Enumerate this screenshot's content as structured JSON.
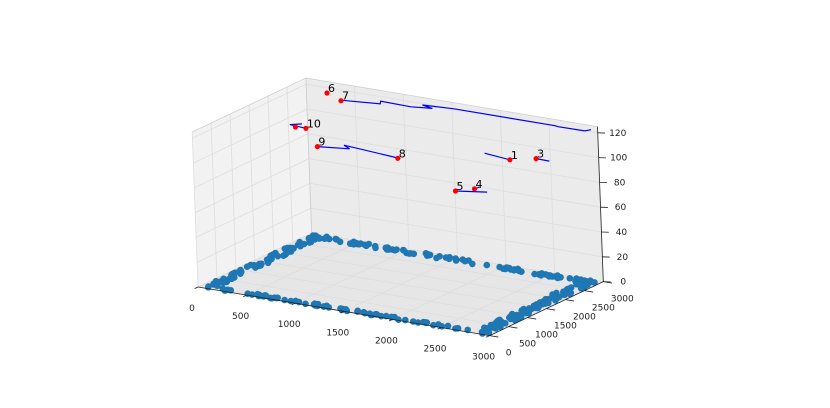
{
  "chart_data": {
    "type": "scatter",
    "projection": "3d",
    "title": "",
    "xlabel": "",
    "ylabel": "",
    "zlabel": "",
    "xlim": [
      0,
      3000
    ],
    "ylim": [
      0,
      3000
    ],
    "zlim": [
      0,
      125
    ],
    "x_ticks": [
      "0",
      "500",
      "1000",
      "1500",
      "2000",
      "2500",
      "3000"
    ],
    "y_ticks": [
      "0",
      "500",
      "1000",
      "1500",
      "2000",
      "2500",
      "3000"
    ],
    "z_ticks": [
      "0",
      "20",
      "40",
      "60",
      "80",
      "100",
      "120"
    ],
    "grid": true,
    "colors": {
      "ground_points": "#1f77b4",
      "labeled_points": "#ff0000",
      "tracks": "#0000ff",
      "pane_x": "#f2f2f2",
      "pane_y": "#ebebeb",
      "pane_z": "#e6e6e6",
      "grid": "#dddddd"
    },
    "ground_ring": {
      "inner": {
        "x": [
          150,
          2820
        ],
        "y": [
          120,
          2820
        ]
      },
      "outer": {
        "x": [
          40,
          2950
        ],
        "y": [
          30,
          2950
        ]
      },
      "count": 340,
      "z": 0
    },
    "labeled_points": [
      {
        "label": "1",
        "x": 2360,
        "y": 2300,
        "z": 100
      },
      {
        "label": "3",
        "x": 2540,
        "y": 2530,
        "z": 100
      },
      {
        "label": "4",
        "x": 2150,
        "y": 1880,
        "z": 80
      },
      {
        "label": "5",
        "x": 2040,
        "y": 1660,
        "z": 80
      },
      {
        "label": "6",
        "x": 300,
        "y": 2780,
        "z": 120
      },
      {
        "label": "7",
        "x": 530,
        "y": 2560,
        "z": 120
      },
      {
        "label": "8",
        "x": 1280,
        "y": 2100,
        "z": 90
      },
      {
        "label": "9",
        "x": 480,
        "y": 2030,
        "z": 90
      },
      {
        "label": "10",
        "x": 300,
        "y": 2200,
        "z": 100
      },
      {
        "label": "",
        "x": 200,
        "y": 2180,
        "z": 100
      }
    ],
    "tracks": [
      [
        {
          "x": 520,
          "y": 2580,
          "z": 120
        },
        {
          "x": 880,
          "y": 2700,
          "z": 120
        },
        {
          "x": 840,
          "y": 2810,
          "z": 120
        },
        {
          "x": 1160,
          "y": 2790,
          "z": 120
        },
        {
          "x": 1350,
          "y": 2870,
          "z": 120
        },
        {
          "x": 1220,
          "y": 2940,
          "z": 120
        },
        {
          "x": 1520,
          "y": 3000,
          "z": 120
        },
        {
          "x": 2560,
          "y": 3000,
          "z": 120
        },
        {
          "x": 2600,
          "y": 2980,
          "z": 120
        },
        {
          "x": 2870,
          "y": 2990,
          "z": 120
        },
        {
          "x": 2900,
          "y": 3080,
          "z": 120
        }
      ],
      [
        {
          "x": 2360,
          "y": 2300,
          "z": 100
        },
        {
          "x": 2060,
          "y": 2400,
          "z": 100
        }
      ],
      [
        {
          "x": 2540,
          "y": 2530,
          "z": 100
        },
        {
          "x": 2680,
          "y": 2520,
          "z": 100
        }
      ],
      [
        {
          "x": 2040,
          "y": 1660,
          "z": 80
        },
        {
          "x": 2300,
          "y": 1830,
          "z": 80
        }
      ],
      [
        {
          "x": 2150,
          "y": 1880,
          "z": 80
        },
        {
          "x": 2160,
          "y": 1980,
          "z": 80
        }
      ],
      [
        {
          "x": 480,
          "y": 2030,
          "z": 90
        },
        {
          "x": 760,
          "y": 2160,
          "z": 90
        },
        {
          "x": 660,
          "y": 2270,
          "z": 90
        },
        {
          "x": 1300,
          "y": 2110,
          "z": 90
        }
      ],
      [
        {
          "x": 300,
          "y": 2200,
          "z": 100
        },
        {
          "x": 120,
          "y": 2240,
          "z": 100
        },
        {
          "x": 200,
          "y": 2350,
          "z": 100
        },
        {
          "x": 120,
          "y": 2240,
          "z": 100
        }
      ]
    ]
  }
}
